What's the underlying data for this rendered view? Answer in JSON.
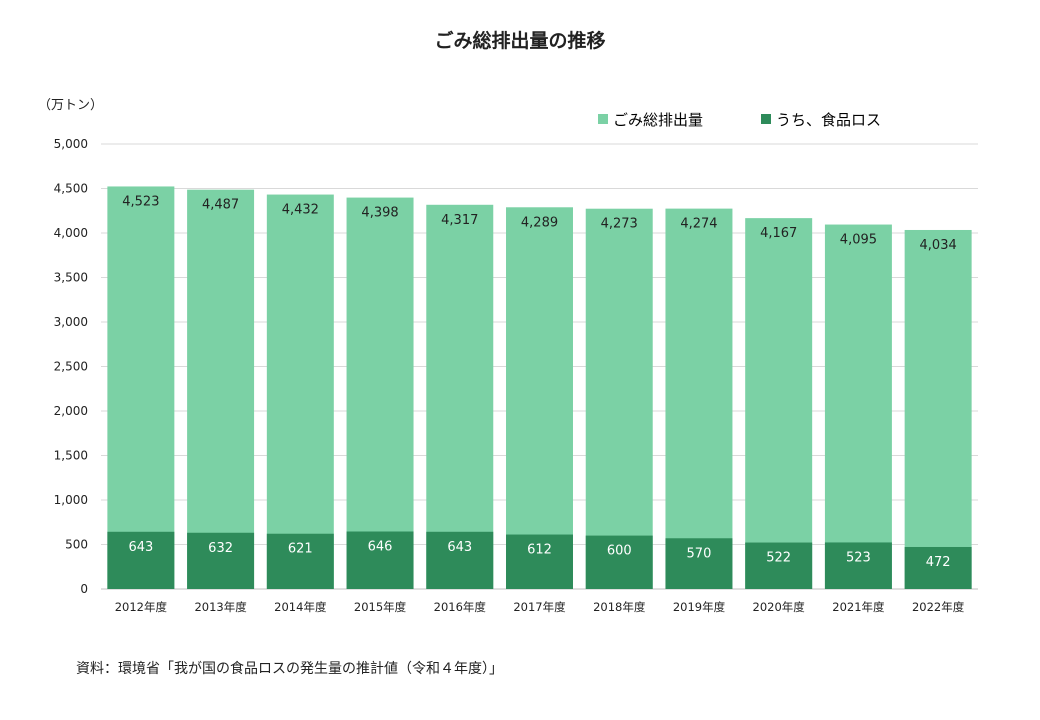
{
  "chart_data": {
    "type": "bar",
    "stacked": true,
    "title": "ごみ総排出量の推移",
    "ylabel": "（万トン）",
    "ylim": [
      0,
      5000
    ],
    "yticks": [
      "0",
      "500",
      "1,000",
      "1,500",
      "2,000",
      "2,500",
      "3,000",
      "3,500",
      "4,000",
      "4,500",
      "5,000"
    ],
    "categories": [
      "2012年度",
      "2013年度",
      "2014年度",
      "2015年度",
      "2016年度",
      "2017年度",
      "2018年度",
      "2019年度",
      "2020年度",
      "2021年度",
      "2022年度"
    ],
    "series": [
      {
        "name": "ごみ総排出量",
        "color": "#7BD1A5",
        "values": [
          4523,
          4487,
          4432,
          4398,
          4317,
          4289,
          4273,
          4274,
          4167,
          4095,
          4034
        ],
        "labels": [
          "4,523",
          "4,487",
          "4,432",
          "4,398",
          "4,317",
          "4,289",
          "4,273",
          "4,274",
          "4,167",
          "4,095",
          "4,034"
        ]
      },
      {
        "name": "うち、食品ロス",
        "color": "#2E8B5A",
        "values": [
          643,
          632,
          621,
          646,
          643,
          612,
          600,
          570,
          522,
          523,
          472
        ],
        "labels": [
          "643",
          "632",
          "621",
          "646",
          "643",
          "612",
          "600",
          "570",
          "522",
          "523",
          "472"
        ]
      }
    ],
    "legend_position": "top-right",
    "grid": true
  },
  "source_note": "資料：環境省「我が国の食品ロスの発生量の推計値（令和４年度）」"
}
